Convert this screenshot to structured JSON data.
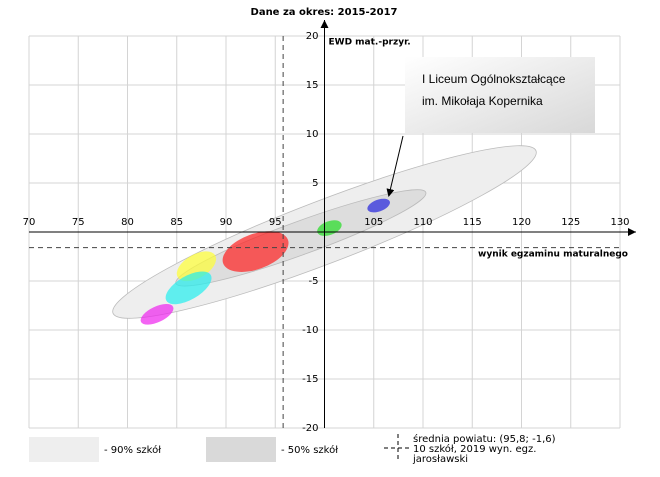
{
  "chart_data": {
    "type": "ellipse",
    "title": "Dane za okres: 2015-2017",
    "x_label": "wynik egzaminu maturalnego",
    "y_label": "EWD mat.-przyr.",
    "xlim": [
      70,
      130
    ],
    "ylim": [
      -20,
      20
    ],
    "xticks": [
      70,
      75,
      80,
      85,
      90,
      95,
      105,
      110,
      115,
      120,
      125,
      130
    ],
    "yticks": [
      20,
      15,
      10,
      5,
      -5,
      -10,
      -15,
      -20
    ],
    "grid": true,
    "bands": [
      {
        "name": "- 90% szkół",
        "color": "#eeeeee",
        "cx": 100,
        "cy": 0,
        "rx": 23,
        "ry": 3.2,
        "angle": -21
      },
      {
        "name": "- 50% szkół",
        "color": "#d9d9d9",
        "cx": 97.6,
        "cy": -0.6,
        "rx": 13.5,
        "ry": 1.7,
        "angle": -20
      }
    ],
    "ellipses": [
      {
        "color": "#ff2020",
        "cx": 93,
        "cy": -2,
        "rx": 3.5,
        "ry": 1.8,
        "angle": -20
      },
      {
        "color": "#22dd22",
        "cx": 100.5,
        "cy": 0.4,
        "rx": 1.3,
        "ry": 0.7,
        "angle": -20
      },
      {
        "color": "#2222dd",
        "cx": 105.5,
        "cy": 2.7,
        "rx": 1.2,
        "ry": 0.6,
        "angle": -20
      },
      {
        "color": "#ffff33",
        "cx": 87,
        "cy": -3.5,
        "rx": 2.2,
        "ry": 1.2,
        "angle": -30
      },
      {
        "color": "#22eeee",
        "cx": 86.2,
        "cy": -5.7,
        "rx": 2.6,
        "ry": 1.2,
        "angle": -30
      },
      {
        "color": "#ee22ee",
        "cx": 83,
        "cy": -8.4,
        "rx": 1.8,
        "ry": 0.8,
        "angle": -25
      }
    ],
    "mean": {
      "x": 95.8,
      "y": -1.6,
      "label": [
        "średnia powiatu: (95,8; -1,6)",
        "10 szkół, 2019 wyn. egz.",
        "jarosławski"
      ]
    },
    "annotation": [
      "I Liceum Ogólnokształcące",
      "im. Mikołaja Kopernika"
    ]
  }
}
